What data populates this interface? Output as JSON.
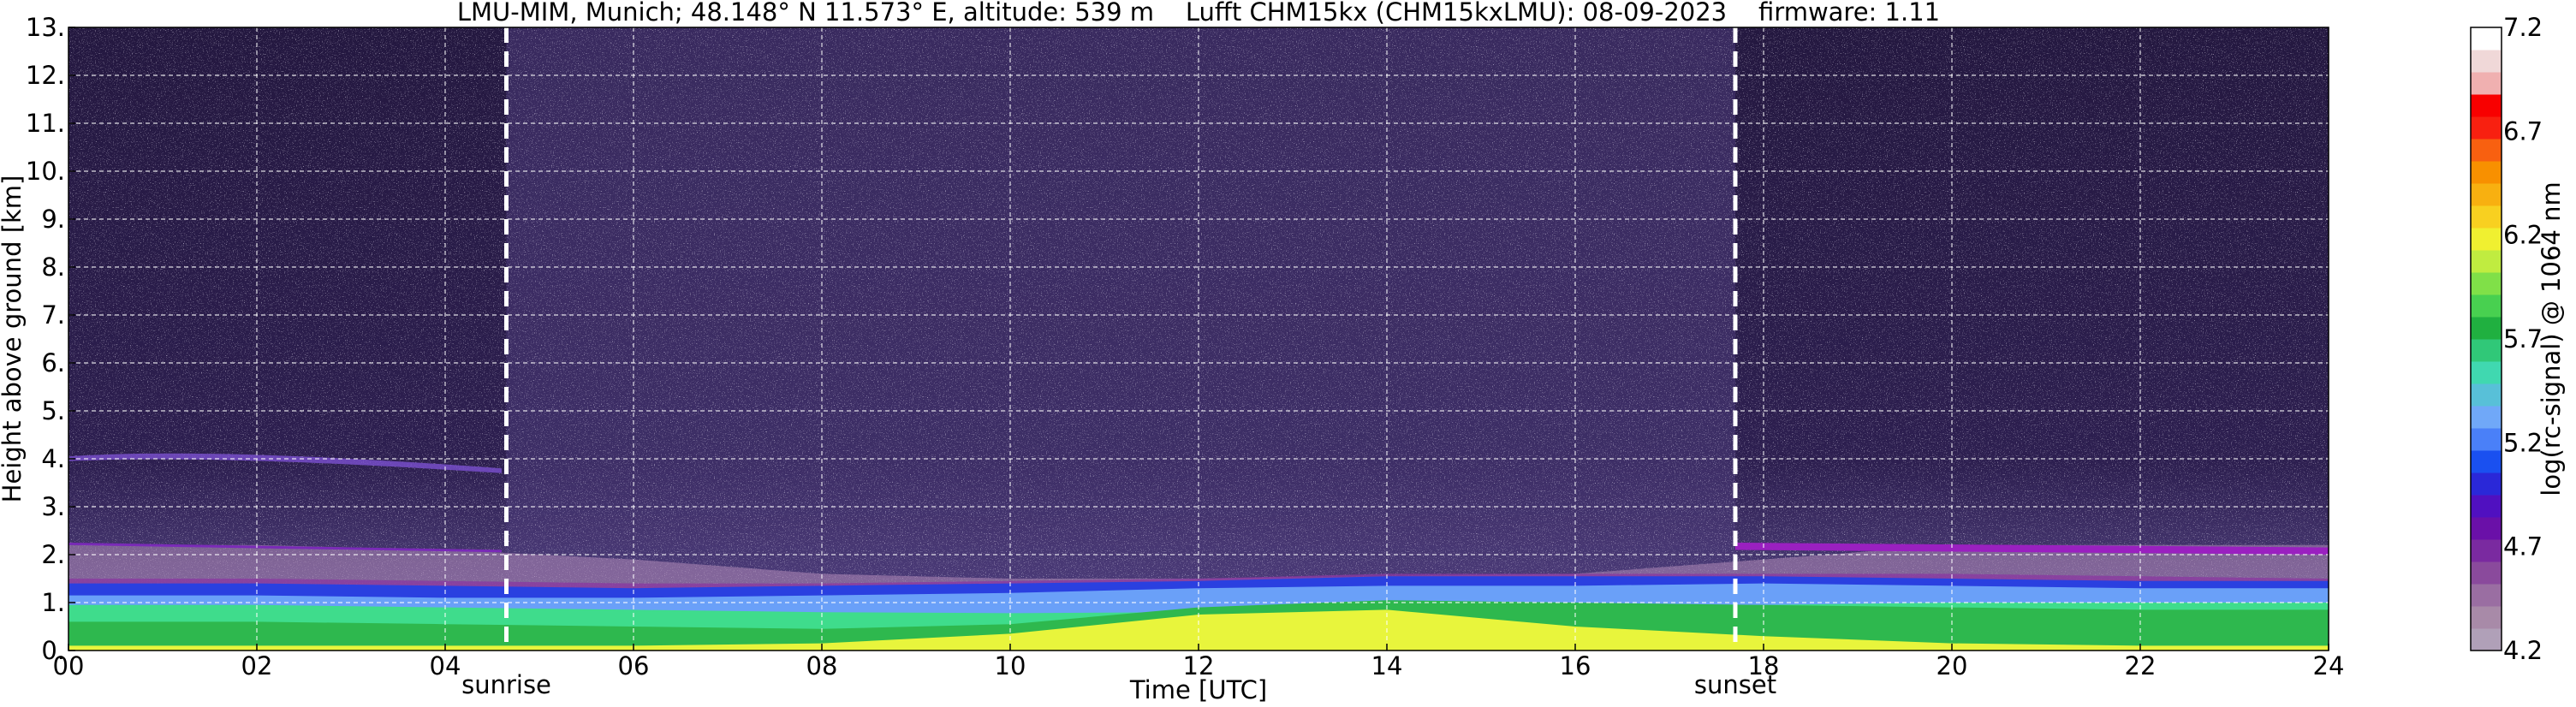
{
  "chart_data": {
    "type": "heatmap",
    "title": "LMU-MIM, Munich; 48.148° N 11.573° E, altitude: 539 m    Lufft CHM15kx (CHM15kxLMU): 08-09-2023    firmware: 1.11",
    "xlabel": "Time [UTC]",
    "ylabel": "Height above ground [km]",
    "xlim": [
      0,
      24
    ],
    "ylim": [
      0,
      13
    ],
    "x_ticks": [
      "00",
      "02",
      "04",
      "06",
      "08",
      "10",
      "12",
      "14",
      "16",
      "18",
      "20",
      "22",
      "24"
    ],
    "y_ticks": [
      "0.",
      "1.",
      "2.",
      "3.",
      "4.",
      "5.",
      "6.",
      "7.",
      "8.",
      "9.",
      "10.",
      "11.",
      "12.",
      "13."
    ],
    "grid": true,
    "events": [
      {
        "label": "sunrise",
        "time": 4.65
      },
      {
        "label": "sunset",
        "time": 17.7
      }
    ],
    "layers": [
      {
        "top_km": [
          0.95,
          0.95,
          0.9,
          0.85,
          0.8,
          0.78,
          0.8,
          0.85,
          0.9,
          0.95,
          1.0,
          1.0,
          1.0
        ],
        "color": "#3fdc8c"
      },
      {
        "top_km": [
          0.6,
          0.6,
          0.55,
          0.5,
          0.45,
          0.55,
          0.9,
          1.05,
          1.0,
          0.95,
          0.9,
          0.85,
          0.85
        ],
        "color": "#2eb84e"
      },
      {
        "top_km": [
          0.1,
          0.1,
          0.1,
          0.1,
          0.15,
          0.35,
          0.75,
          0.85,
          0.5,
          0.3,
          0.15,
          0.1,
          0.1
        ],
        "color": "#e8f53c"
      }
    ],
    "colorbar": {
      "label": "log(rc-signal) @ 1064 nm",
      "min": 4.2,
      "max": 7.2,
      "ticks": [
        "4.2",
        "4.7",
        "5.2",
        "5.7",
        "6.2",
        "6.7",
        "7.2"
      ],
      "colors": [
        "#b0a0b8",
        "#a88aa8",
        "#9a6ea2",
        "#8a4a9c",
        "#7a2aa0",
        "#6a10a8",
        "#5010c0",
        "#2a28d8",
        "#1a50f0",
        "#4a80f8",
        "#70a8f8",
        "#58c0d8",
        "#40d8b0",
        "#30c878",
        "#20b040",
        "#48d050",
        "#80e048",
        "#c0ec40",
        "#f0f030",
        "#f8d020",
        "#f8b010",
        "#f89000",
        "#f86010",
        "#f82010",
        "#f80000",
        "#f0b0b0",
        "#f0d8d8",
        "#ffffff"
      ]
    }
  }
}
